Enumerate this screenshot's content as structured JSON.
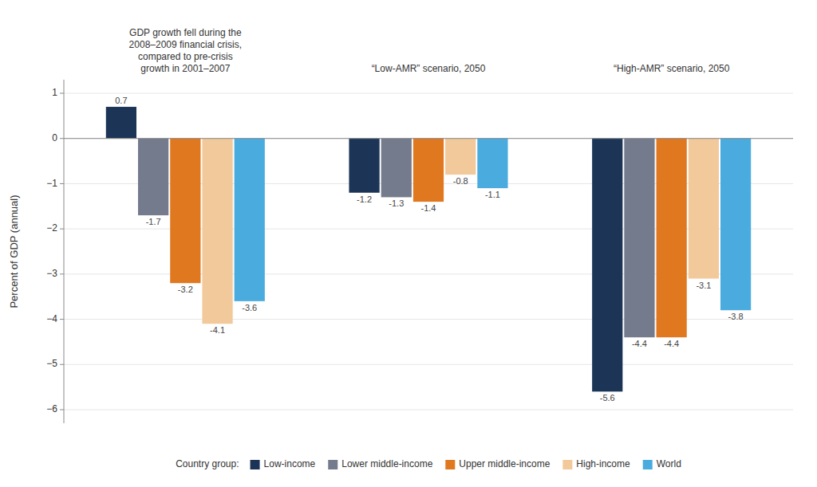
{
  "chart_data": {
    "type": "bar",
    "categories": [
      null,
      null,
      null
    ],
    "annotations": [
      "GDP growth fell during the\n2008–2009 financial crisis,\ncompared to pre-crisis\ngrowth in 2001–2007",
      "“Low-AMR” scenario, 2050",
      "“High-AMR” scenario, 2050"
    ],
    "series": [
      {
        "name": "Low-income",
        "color": "#1c3557",
        "values": [
          0.7,
          -1.2,
          -5.6
        ]
      },
      {
        "name": "Lower middle-income",
        "color": "#737b8c",
        "values": [
          -1.7,
          -1.3,
          -4.4
        ]
      },
      {
        "name": "Upper middle-income",
        "color": "#e07820",
        "values": [
          -3.2,
          -1.4,
          -4.4
        ]
      },
      {
        "name": "High-income",
        "color": "#f2c99a",
        "values": [
          -4.1,
          -0.8,
          -3.1
        ]
      },
      {
        "name": "World",
        "color": "#4aacde",
        "values": [
          -3.6,
          -1.1,
          -3.8
        ]
      }
    ],
    "ylabel": "Percent of GDP (annual)",
    "ylim": [
      -6.3,
      1.3
    ],
    "yticks": [
      1,
      0,
      {
        "value": -1,
        "label": "−1"
      },
      {
        "value": -2,
        "label": "−2"
      },
      {
        "value": -3,
        "label": "−3"
      },
      {
        "value": -4,
        "label": "−4"
      },
      {
        "value": -5,
        "label": "−5"
      },
      {
        "value": -6,
        "label": "−6"
      }
    ],
    "grid": true,
    "legend": "bottom",
    "legend_title": "Country group:",
    "data_labels": true
  }
}
